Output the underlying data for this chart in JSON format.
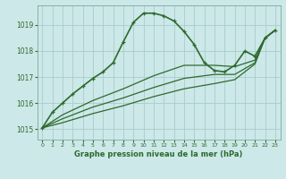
{
  "title": "Graphe pression niveau de la mer (hPa)",
  "bg_color": "#cce8e8",
  "grid_color": "#aacccc",
  "line_color": "#2d6a2d",
  "x_ticks": [
    0,
    1,
    2,
    3,
    4,
    5,
    6,
    7,
    8,
    9,
    10,
    11,
    12,
    13,
    14,
    15,
    16,
    17,
    18,
    19,
    20,
    21,
    22,
    23
  ],
  "y_ticks": [
    1015,
    1016,
    1017,
    1018,
    1019
  ],
  "ylim": [
    1014.6,
    1019.75
  ],
  "xlim": [
    -0.5,
    23.5
  ],
  "series": [
    {
      "x": [
        0,
        1,
        2,
        3,
        4,
        5,
        6,
        7,
        8,
        9,
        10,
        11,
        12,
        13,
        14,
        15,
        16,
        17,
        18,
        19,
        20,
        21,
        22,
        23
      ],
      "y": [
        1015.05,
        1015.65,
        1016.0,
        1016.35,
        1016.65,
        1016.95,
        1017.2,
        1017.55,
        1018.35,
        1019.1,
        1019.45,
        1019.45,
        1019.35,
        1019.15,
        1018.75,
        1018.25,
        1017.55,
        1017.25,
        1017.2,
        1017.45,
        1018.0,
        1017.8,
        1018.5,
        1018.8
      ],
      "marker": "+",
      "lw": 1.2
    },
    {
      "x": [
        0,
        2,
        5,
        8,
        11,
        14,
        17,
        19,
        21,
        22,
        23
      ],
      "y": [
        1015.05,
        1015.55,
        1016.1,
        1016.55,
        1017.05,
        1017.45,
        1017.45,
        1017.4,
        1017.65,
        1018.5,
        1018.8
      ],
      "marker": null,
      "lw": 0.9
    },
    {
      "x": [
        0,
        2,
        5,
        8,
        11,
        14,
        17,
        19,
        21,
        22,
        23
      ],
      "y": [
        1015.05,
        1015.4,
        1015.85,
        1016.2,
        1016.6,
        1016.95,
        1017.1,
        1017.1,
        1017.55,
        1018.5,
        1018.8
      ],
      "marker": null,
      "lw": 0.9
    },
    {
      "x": [
        0,
        2,
        5,
        8,
        11,
        14,
        17,
        19,
        21,
        22,
        23
      ],
      "y": [
        1015.05,
        1015.25,
        1015.6,
        1015.9,
        1016.25,
        1016.55,
        1016.75,
        1016.9,
        1017.5,
        1018.5,
        1018.8
      ],
      "marker": null,
      "lw": 0.9
    }
  ]
}
